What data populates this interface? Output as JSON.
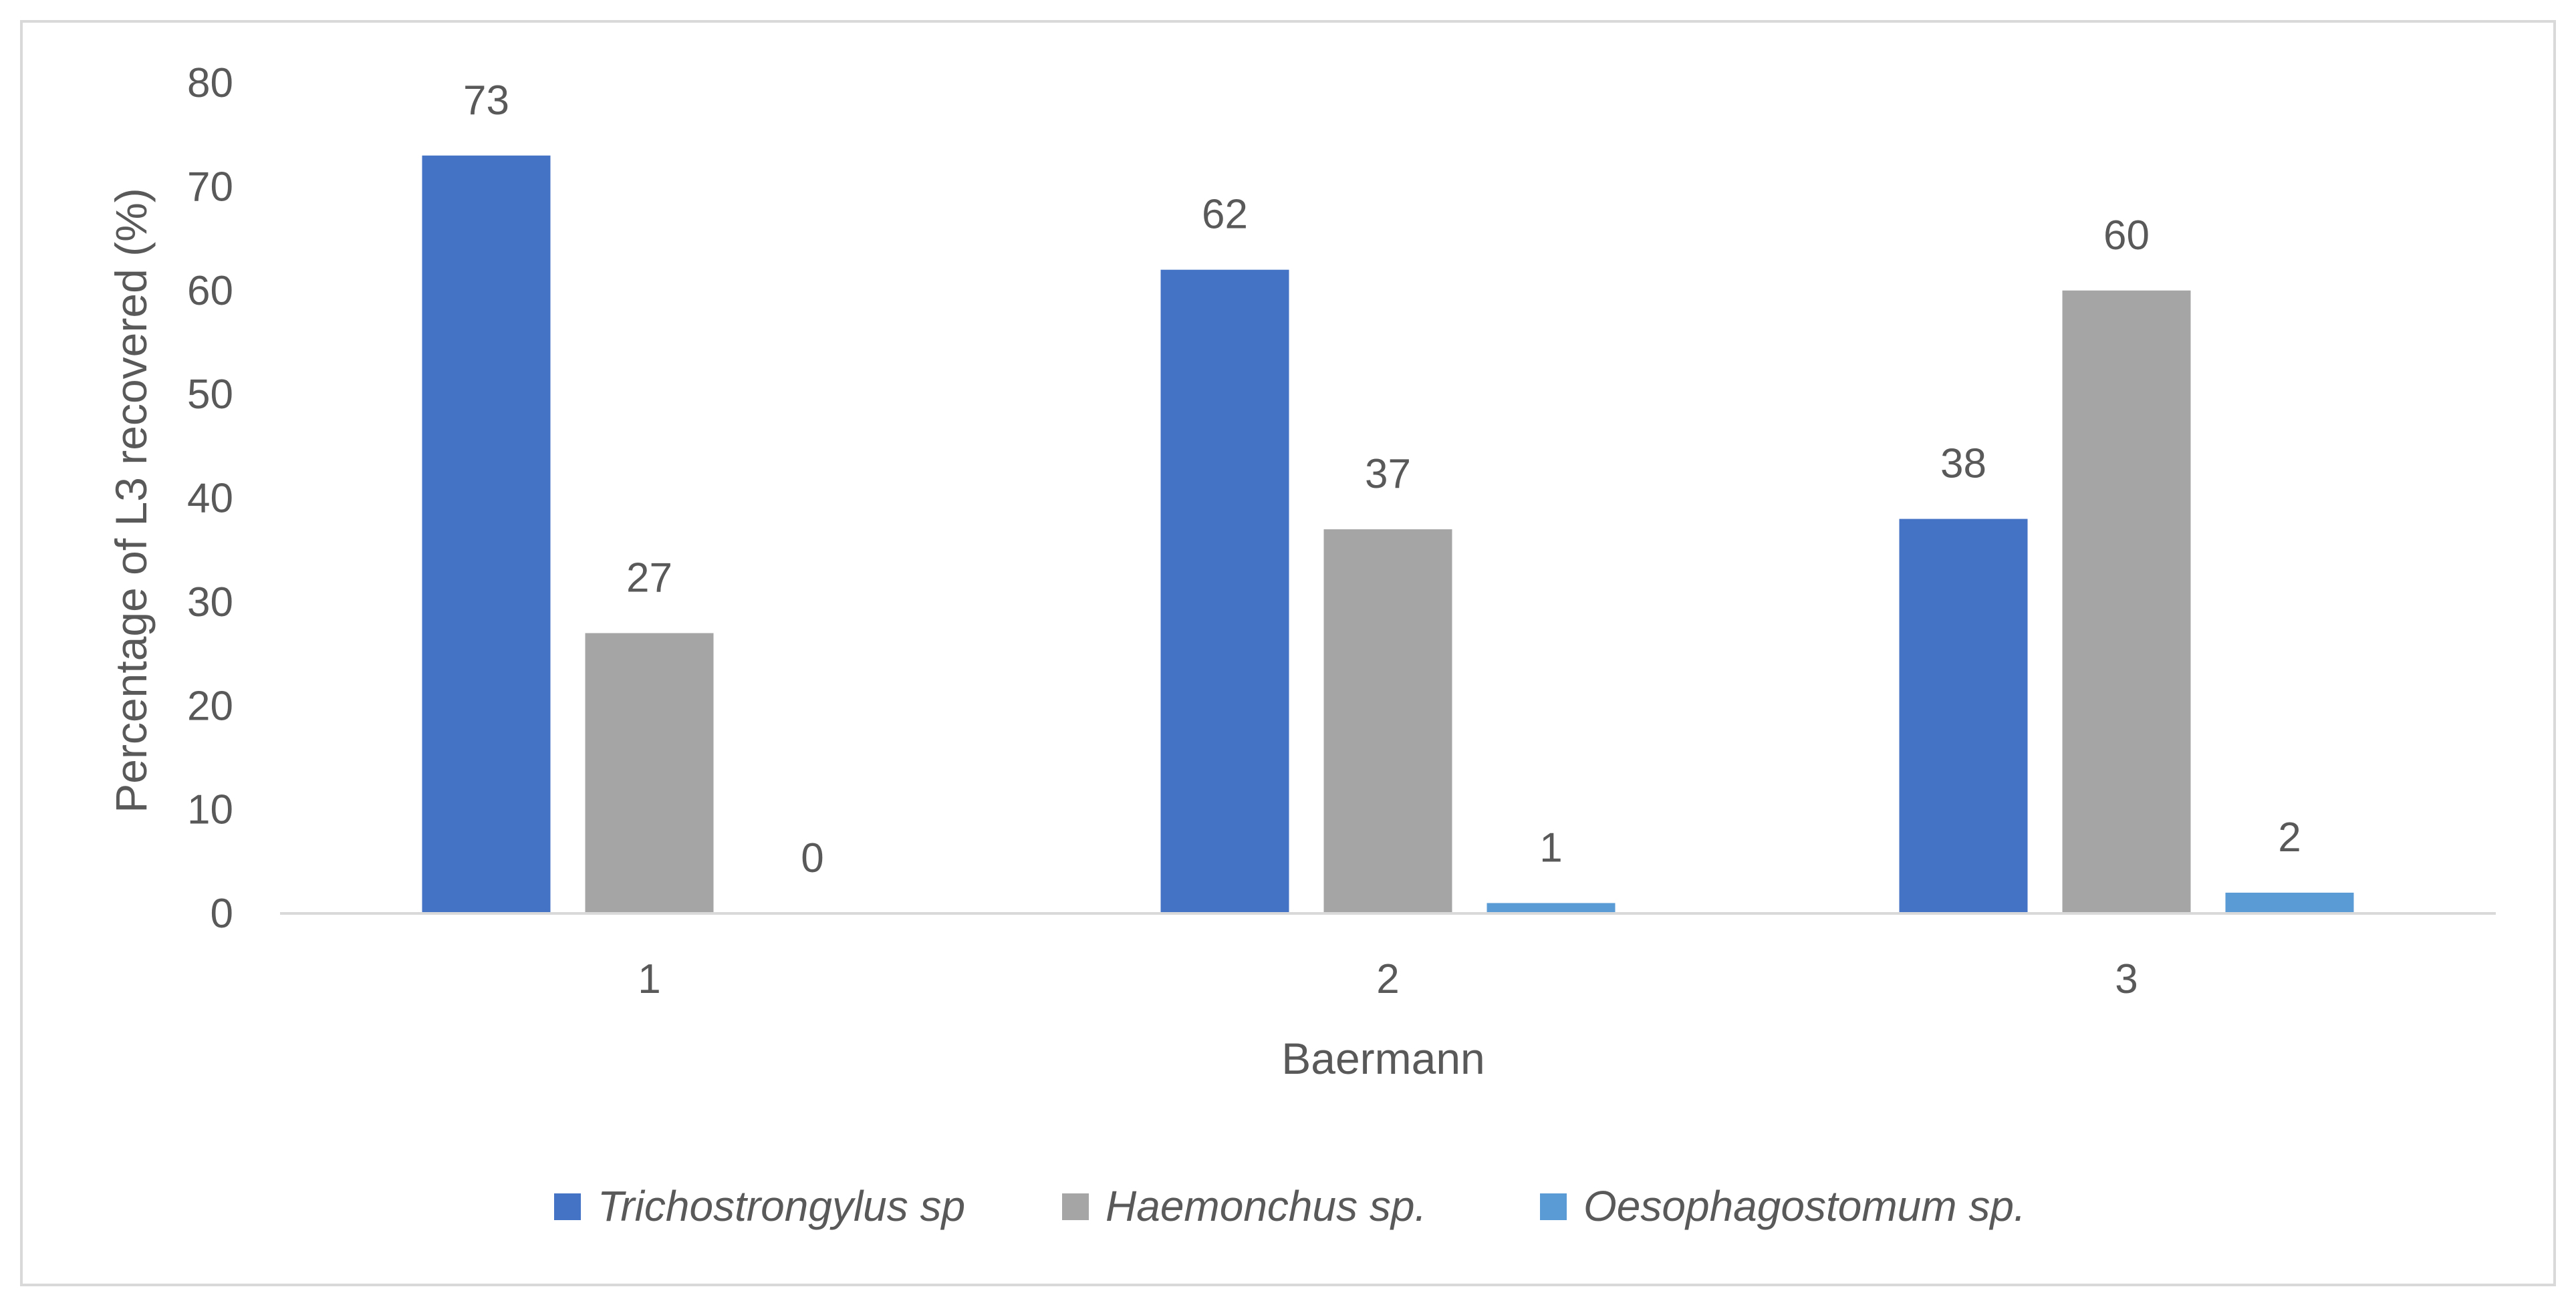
{
  "chart_data": {
    "type": "bar",
    "categories": [
      "1",
      "2",
      "3"
    ],
    "series": [
      {
        "name": "Trichostrongylus sp",
        "values": [
          73,
          62,
          38
        ],
        "color": "#4472c4"
      },
      {
        "name": "Haemonchus sp.",
        "values": [
          27,
          37,
          60
        ],
        "color": "#a5a5a5"
      },
      {
        "name": "Oesophagostomum sp.",
        "values": [
          0,
          1,
          2
        ],
        "color": "#5b9bd5"
      }
    ],
    "title": "",
    "xlabel": "Baermann",
    "ylabel": "Percentage of L3 recovered (%)",
    "ylim": [
      0,
      80
    ],
    "yticks": [
      0,
      10,
      20,
      30,
      40,
      50,
      60,
      70,
      80
    ],
    "grid": false,
    "data_labels": true,
    "legend": "bottom",
    "axis_color": "#d9d9d9",
    "text_color": "#595959"
  }
}
